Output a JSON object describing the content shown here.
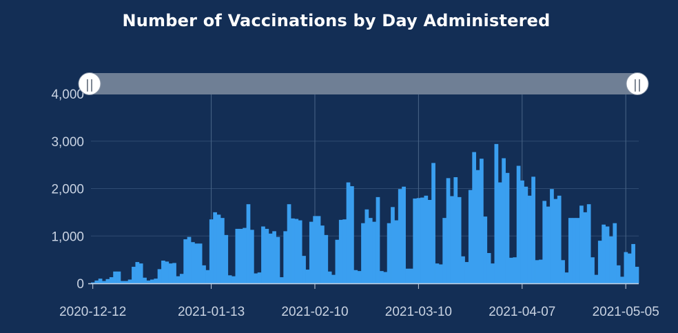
{
  "chart_data": {
    "type": "bar",
    "title": "Number of Vaccinations by Day Administered",
    "xlabel": "",
    "ylabel": "",
    "ylim": [
      0,
      4000
    ],
    "yticks": [
      0,
      1000,
      2000,
      3000,
      4000
    ],
    "ytick_labels": [
      "0",
      "1,000",
      "2,000",
      "3,000",
      "4,000"
    ],
    "xticks": [
      "2020-12-12",
      "2021-01-13",
      "2021-02-10",
      "2021-03-10",
      "2021-04-07",
      "2021-05-05"
    ],
    "x_start": "2020-12-12",
    "grid": true,
    "legend": "none",
    "range_slider": {
      "start": "2020-12-12",
      "end": "2021-05-10",
      "handle_glyph": "||"
    },
    "colors": {
      "background": "#132e55",
      "bar": "#3a9ff0",
      "grid": "#2f4b72",
      "slider": "#6f7f95",
      "axis": "#c9d3e2"
    },
    "values": [
      20,
      60,
      100,
      50,
      90,
      130,
      250,
      250,
      50,
      50,
      80,
      350,
      450,
      420,
      120,
      60,
      80,
      100,
      300,
      480,
      460,
      420,
      430,
      150,
      200,
      930,
      980,
      870,
      840,
      840,
      380,
      280,
      1350,
      1500,
      1450,
      1380,
      1020,
      170,
      150,
      1150,
      1150,
      1170,
      1670,
      1130,
      210,
      230,
      1200,
      1150,
      1050,
      1100,
      980,
      130,
      1100,
      1670,
      1370,
      1360,
      1330,
      580,
      290,
      1300,
      1420,
      1420,
      1220,
      1020,
      250,
      180,
      920,
      1340,
      1350,
      2130,
      2050,
      280,
      260,
      1270,
      1560,
      1380,
      1300,
      1820,
      260,
      240,
      1270,
      1610,
      1330,
      1990,
      2040,
      310,
      310,
      1790,
      1800,
      1810,
      1850,
      1760,
      2540,
      420,
      400,
      1380,
      2220,
      1840,
      2240,
      1820,
      570,
      450,
      1970,
      2770,
      2390,
      2630,
      1410,
      640,
      420,
      2940,
      2130,
      2640,
      2330,
      540,
      550,
      2480,
      2170,
      2040,
      1850,
      2250,
      490,
      500,
      1740,
      1620,
      1990,
      1780,
      1850,
      490,
      230,
      1380,
      1380,
      1380,
      1640,
      1500,
      1670,
      550,
      180,
      900,
      1240,
      1200,
      990,
      1270,
      380,
      140,
      660,
      630,
      830,
      350
    ]
  }
}
